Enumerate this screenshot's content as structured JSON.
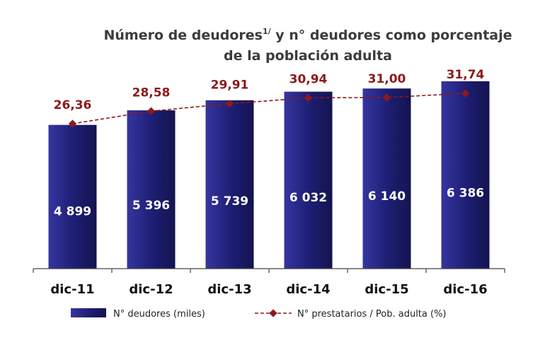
{
  "chart_data": {
    "type": "bar",
    "title_line1": "Número de deudores",
    "title_sup": "1/",
    "title_line1_rest": " y n° deudores como porcentaje",
    "title_line2": "de la población adulta",
    "categories": [
      "dic-11",
      "dic-12",
      "dic-13",
      "dic-14",
      "dic-15",
      "dic-16"
    ],
    "series": [
      {
        "name": "N° deudores (miles)",
        "kind": "bar",
        "values": [
          4899,
          5396,
          5739,
          6032,
          6140,
          6386
        ],
        "labels": [
          "4 899",
          "5 396",
          "5 739",
          "6 032",
          "6 140",
          "6 386"
        ],
        "color": "#1f1f6e"
      },
      {
        "name": "N° prestatarios / Pob. adulta (%)",
        "kind": "line",
        "style": "dashed",
        "values": [
          26.36,
          28.58,
          29.91,
          30.94,
          31.0,
          31.74
        ],
        "labels": [
          "26,36",
          "28,58",
          "29,91",
          "30,94",
          "31,00",
          "31,74"
        ],
        "color": "#8b1a1a"
      }
    ],
    "legend_position": "bottom",
    "grid": false
  }
}
